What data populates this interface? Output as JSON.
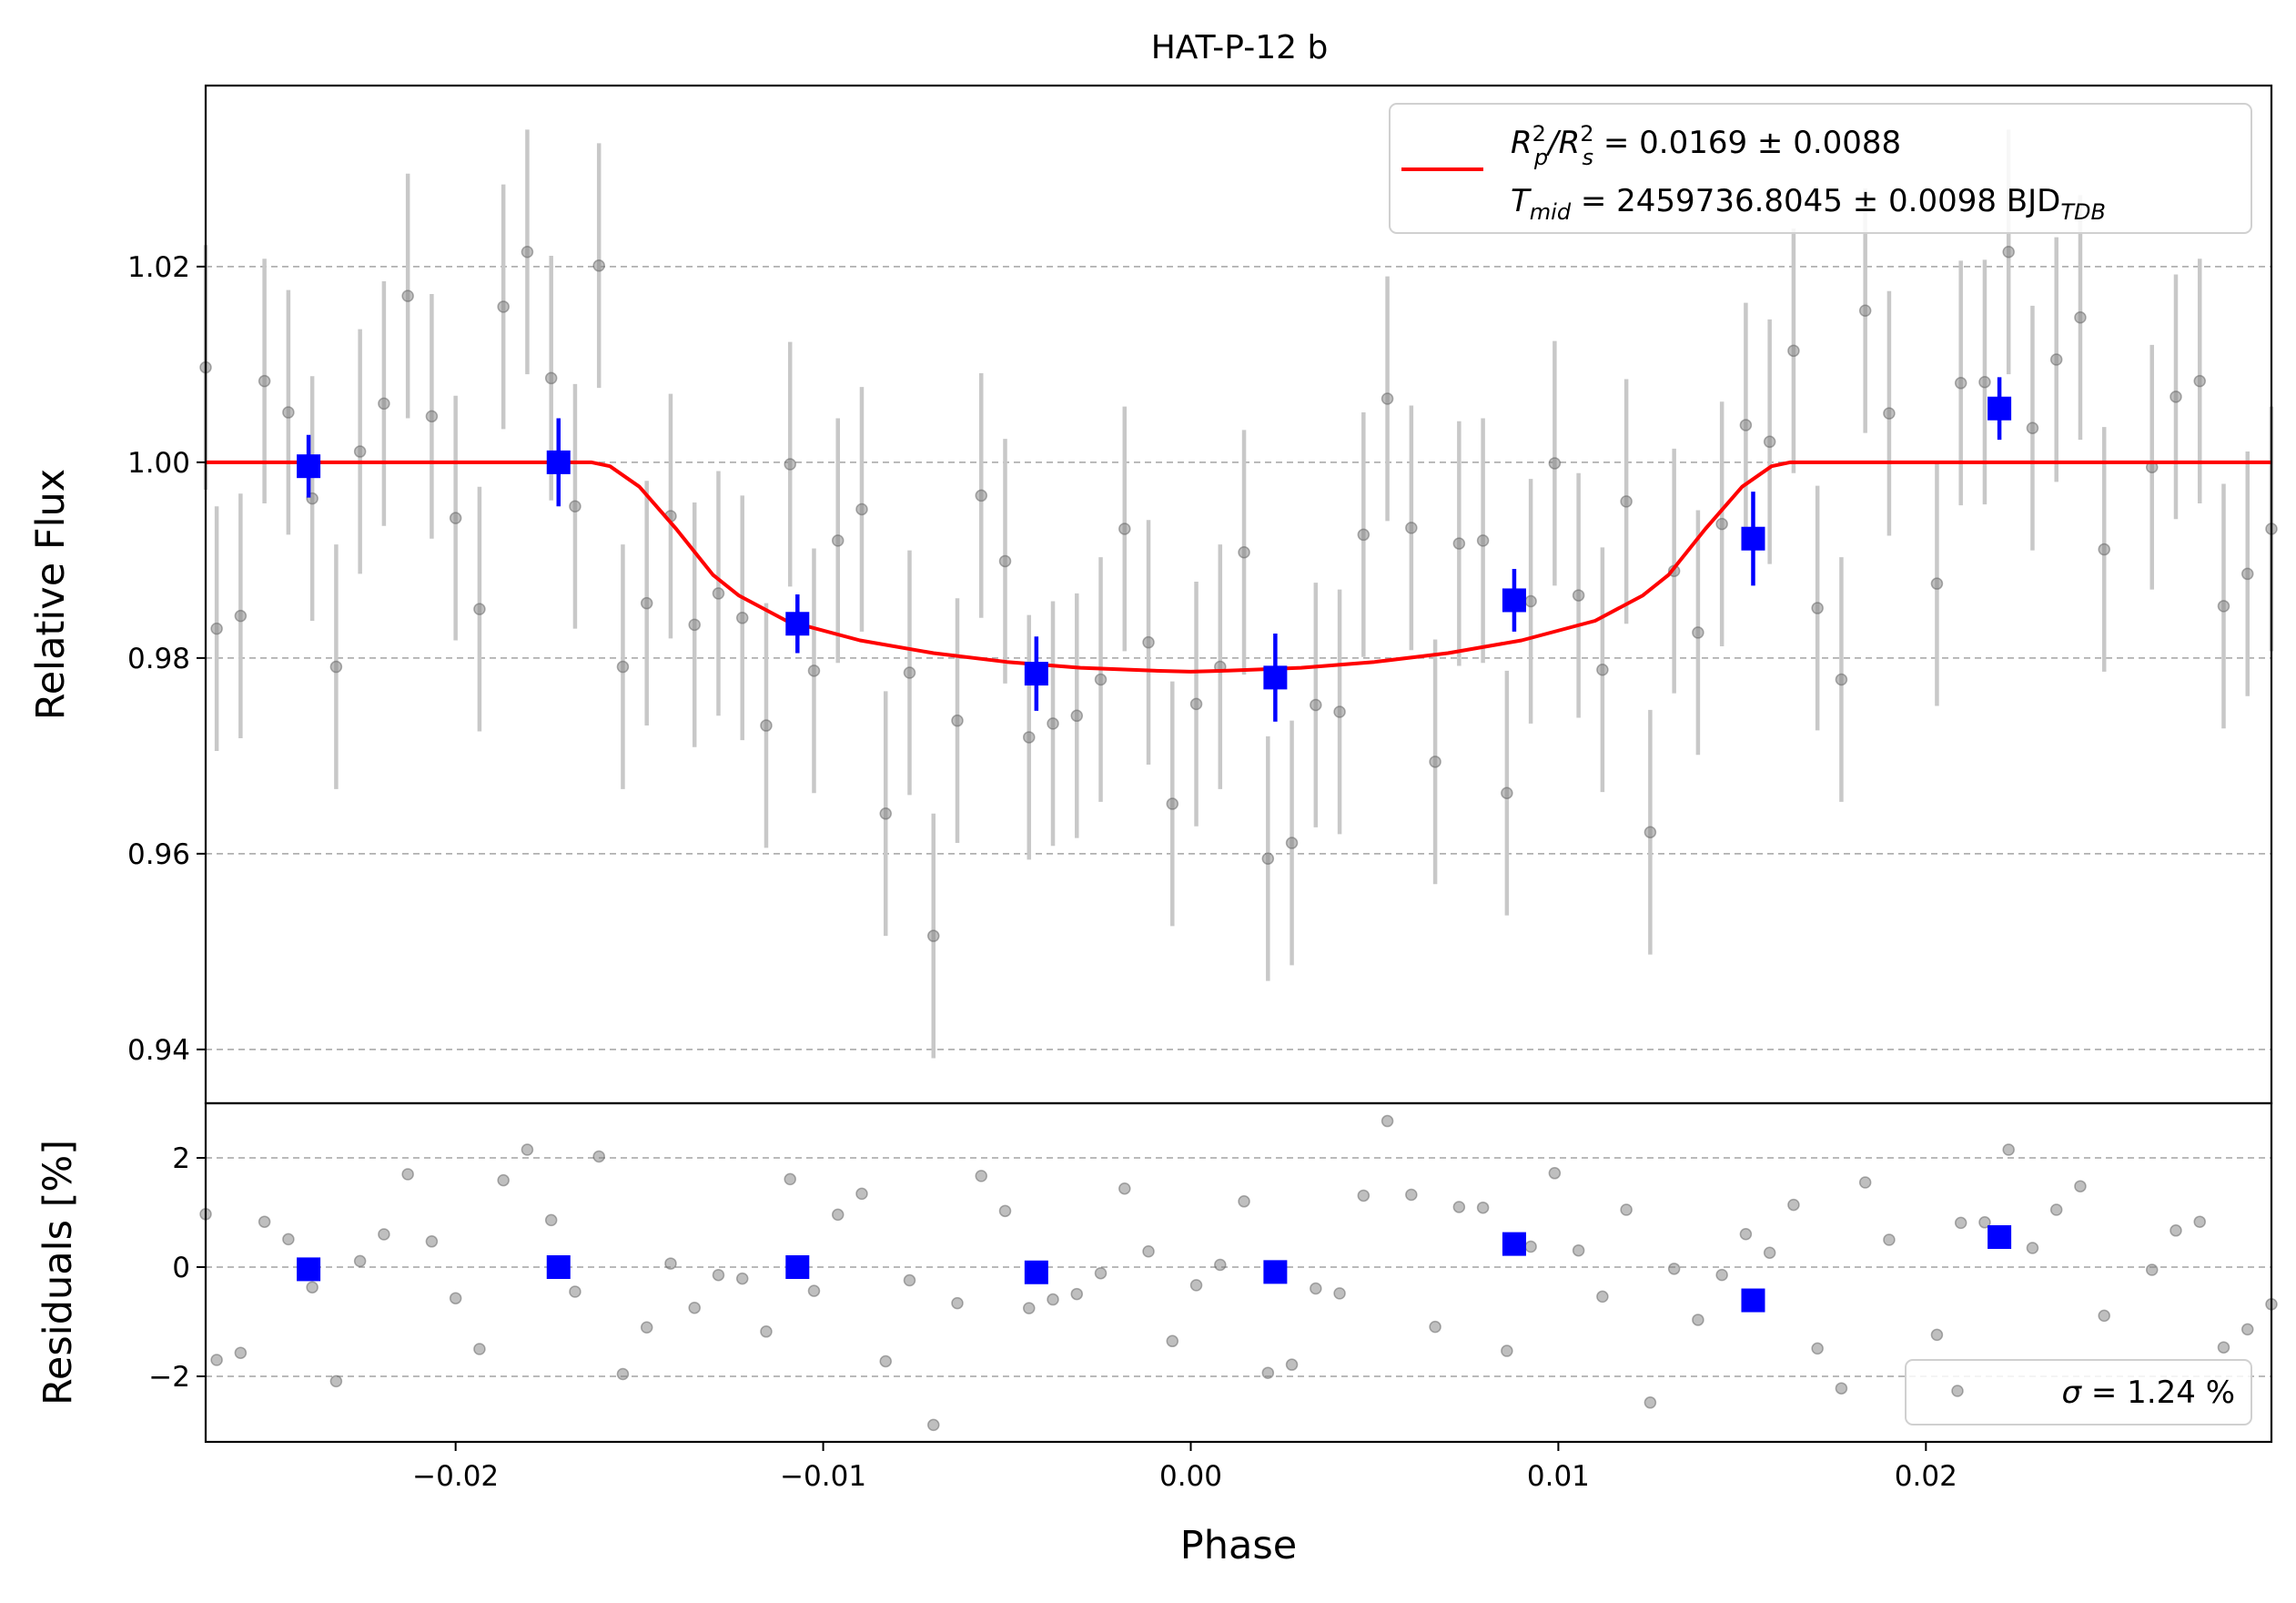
{
  "chart_data": [
    {
      "type": "scatter",
      "panel": "light-curve",
      "title": "HAT-P-12 b",
      "ylabel": "Relative Flux",
      "xlim": [
        -0.0268,
        0.0294
      ],
      "ylim": [
        0.9345,
        1.0385
      ],
      "yticks": [
        0.94,
        0.96,
        0.98,
        1.0,
        1.02
      ],
      "ytick_labels": [
        "0.94",
        "0.96",
        "0.98",
        "1.00",
        "1.02"
      ],
      "grid": "horizontal dashed",
      "legend": {
        "placement": "top-right",
        "line1": {
          "lhs": "R",
          "sub1": "p",
          "sup1": "2",
          "slash": "/R",
          "sub2": "s",
          "sup2": "2",
          "rhs": " = 0.0169 ± 0.0088"
        },
        "line2": {
          "lhs": "T",
          "sub": "mid",
          "rhs": " = 2459736.8045 ± 0.0098 BJD",
          "rhs_sub": "TDB"
        }
      },
      "colors": {
        "raw": "#808080",
        "errorbar": "#c8c8c8",
        "binned": "#0000ff",
        "model": "#ff0000",
        "grid": "#b0b0b0"
      },
      "raw_x": [
        -0.0268,
        -0.0265,
        -0.02585,
        -0.0252,
        -0.02455,
        -0.0239,
        -0.02325,
        -0.0226,
        -0.02195,
        -0.0213,
        -0.02065,
        -0.02,
        -0.01935,
        -0.0187,
        -0.01805,
        -0.0174,
        -0.01675,
        -0.0161,
        -0.01545,
        -0.0148,
        -0.01415,
        -0.0135,
        -0.01285,
        -0.0122,
        -0.01155,
        -0.0109,
        -0.01025,
        -0.0096,
        -0.00895,
        -0.0083,
        -0.00765,
        -0.007,
        -0.00635,
        -0.0057,
        -0.00505,
        -0.0044,
        -0.00375,
        -0.0031,
        -0.00245,
        -0.0018,
        -0.00115,
        -0.0005,
        0.00015,
        0.0008,
        0.00145,
        0.0021,
        0.00275,
        0.0034,
        0.00405,
        0.0047,
        0.00535,
        0.006,
        0.00665,
        0.0073,
        0.00795,
        0.0086,
        0.00925,
        0.0099,
        0.01055,
        0.0112,
        0.01185,
        0.0125,
        0.01315,
        0.0138,
        0.01445,
        0.0151,
        0.01575,
        0.0164,
        0.01705,
        0.0177,
        0.01835,
        0.019,
        0.0203,
        0.02095,
        0.0216,
        0.02225,
        0.0229,
        0.02355,
        0.0242,
        0.02485,
        0.02615,
        0.0268,
        0.02745,
        0.0281,
        0.02875,
        0.0294
      ],
      "raw_y": [
        1.0097,
        0.983,
        0.9843,
        1.0083,
        1.0051,
        0.9963,
        0.9791,
        1.0011,
        1.006,
        1.017,
        1.0047,
        0.9943,
        0.985,
        1.0159,
        1.0215,
        1.0086,
        0.9955,
        1.0201,
        0.9791,
        0.9856,
        0.9945,
        0.9834,
        0.9866,
        0.9841,
        0.9731,
        0.9998,
        0.9787,
        0.992,
        0.9952,
        0.9641,
        0.9785,
        0.9516,
        0.9736,
        0.9966,
        0.9899,
        0.9719,
        0.9733,
        0.9741,
        0.9778,
        0.9932,
        0.9816,
        0.9651,
        0.9753,
        0.9791,
        0.9908,
        0.9595,
        0.9611,
        0.9752,
        0.9745,
        0.9926,
        1.0065,
        0.9933,
        0.9694,
        0.9917,
        0.992,
        0.9662,
        0.9858,
        0.9999,
        0.9864,
        0.9788,
        0.996,
        0.9622,
        0.9889,
        0.9826,
        0.9937,
        1.0038,
        1.0021,
        1.0114,
        0.9851,
        0.9778,
        1.0155,
        1.005,
        0.9876,
        1.0081,
        1.0082,
        1.0215,
        1.0035,
        1.0105,
        1.0148,
        0.9911,
        0.9995,
        1.0067,
        1.0083,
        0.9853,
        0.9886,
        0.9932
      ],
      "raw_yerr": 0.0125,
      "binned_x": [
        -0.024,
        -0.0172,
        -0.0107,
        -0.0042,
        0.0023,
        0.0088,
        0.0153,
        0.022
      ],
      "binned_y": [
        0.9996,
        1.0,
        0.9835,
        0.9784,
        0.978,
        0.9859,
        0.9922,
        1.0055
      ],
      "binned_yerr": [
        0.0032,
        0.0045,
        0.003,
        0.0038,
        0.0045,
        0.0032,
        0.0048,
        0.0032
      ],
      "model_x": [
        -0.0268,
        -0.0163,
        -0.0158,
        -0.015,
        -0.014,
        -0.013,
        -0.0123,
        -0.011,
        -0.009,
        -0.007,
        -0.005,
        -0.003,
        -0.001,
        0.0,
        0.001,
        0.003,
        0.005,
        0.007,
        0.009,
        0.011,
        0.0123,
        0.013,
        0.014,
        0.015,
        0.0158,
        0.0163,
        0.0294
      ],
      "model_y": [
        1.0,
        1.0,
        0.9996,
        0.9975,
        0.9932,
        0.9885,
        0.9864,
        0.9838,
        0.9818,
        0.9805,
        0.9796,
        0.979,
        0.9787,
        0.9786,
        0.9787,
        0.979,
        0.9796,
        0.9805,
        0.9818,
        0.9838,
        0.9864,
        0.9885,
        0.9932,
        0.9975,
        0.9996,
        1.0,
        1.0
      ]
    },
    {
      "type": "scatter",
      "panel": "residuals",
      "xlabel": "Phase",
      "ylabel": "Residuals [%]",
      "xlim": [
        -0.0268,
        0.0294
      ],
      "ylim": [
        -3.2,
        3.0
      ],
      "xticks": [
        -0.02,
        -0.01,
        0.0,
        0.01,
        0.02
      ],
      "xtick_labels": [
        "−0.02",
        "−0.01",
        "0.00",
        "0.01",
        "0.02"
      ],
      "yticks": [
        -2,
        0,
        2
      ],
      "ytick_labels": [
        "−2",
        "0",
        "2"
      ],
      "grid": "horizontal dashed",
      "legend": {
        "placement": "bottom-right",
        "lhs": "σ",
        "rhs": " = 1.24 %"
      }
    }
  ]
}
